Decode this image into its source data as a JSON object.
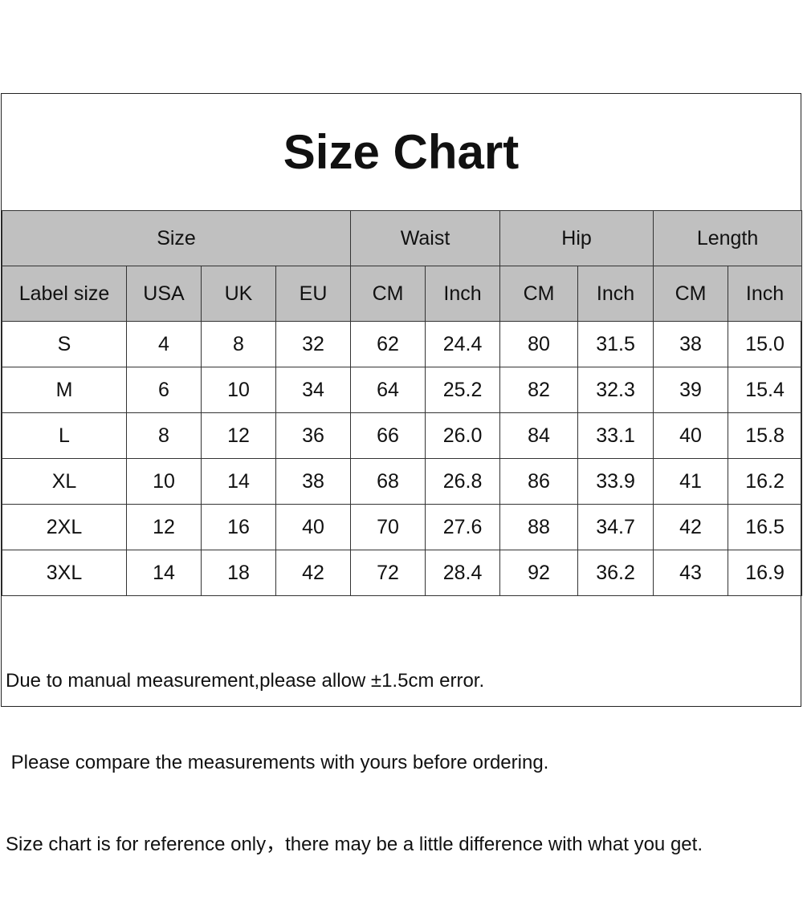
{
  "title": "Size Chart",
  "header_groups": [
    "Size",
    "Waist",
    "Hip",
    "Length"
  ],
  "subheaders": [
    "Label size",
    "USA",
    "UK",
    "EU",
    "CM",
    "Inch",
    "CM",
    "Inch",
    "CM",
    "Inch"
  ],
  "rows": [
    [
      "S",
      "4",
      "8",
      "32",
      "62",
      "24.4",
      "80",
      "31.5",
      "38",
      "15.0"
    ],
    [
      "M",
      "6",
      "10",
      "34",
      "64",
      "25.2",
      "82",
      "32.3",
      "39",
      "15.4"
    ],
    [
      "L",
      "8",
      "12",
      "36",
      "66",
      "26.0",
      "84",
      "33.1",
      "40",
      "15.8"
    ],
    [
      "XL",
      "10",
      "14",
      "38",
      "68",
      "26.8",
      "86",
      "33.9",
      "41",
      "16.2"
    ],
    [
      "2XL",
      "12",
      "16",
      "40",
      "70",
      "27.6",
      "88",
      "34.7",
      "42",
      "16.5"
    ],
    [
      "3XL",
      "14",
      "18",
      "42",
      "72",
      "28.4",
      "92",
      "36.2",
      "43",
      "16.9"
    ]
  ],
  "notes": [
    "Due to manual measurement,please allow ±1.5cm error.",
    " Please compare the measurements with yours before ordering.",
    "Size chart is for reference only，there may be a little difference with what you get."
  ],
  "colors": {
    "header_bg": "#c0c0c0"
  }
}
